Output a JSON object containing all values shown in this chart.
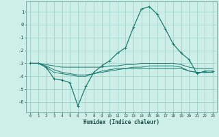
{
  "xlabel": "Humidex (Indice chaleur)",
  "bg_color": "#ceeee8",
  "grid_color": "#9fd4cc",
  "line_color": "#1a7a6e",
  "x_ticks": [
    0,
    1,
    2,
    3,
    4,
    5,
    6,
    7,
    8,
    9,
    10,
    11,
    12,
    13,
    14,
    15,
    16,
    17,
    18,
    19,
    20,
    21,
    22,
    23
  ],
  "y_ticks": [
    -6,
    -5,
    -4,
    -3,
    -2,
    -1,
    0,
    1
  ],
  "ylim": [
    -6.8,
    1.8
  ],
  "xlim": [
    -0.5,
    23.5
  ],
  "curve1_x": [
    0,
    1,
    2,
    3,
    4,
    5,
    6,
    7,
    8,
    9,
    10,
    11,
    12,
    13,
    14,
    15,
    16,
    17,
    18,
    19,
    20,
    21,
    22,
    23
  ],
  "curve1_y": [
    -3.0,
    -3.0,
    -3.3,
    -4.2,
    -4.3,
    -4.5,
    -6.3,
    -4.8,
    -3.7,
    -3.2,
    -2.8,
    -2.2,
    -1.8,
    -0.2,
    1.2,
    1.4,
    0.8,
    -0.3,
    -1.5,
    -2.2,
    -2.7,
    -3.8,
    -3.6,
    -3.6
  ],
  "curve2_x": [
    0,
    1,
    2,
    3,
    4,
    5,
    6,
    7,
    8,
    9,
    10,
    11,
    12,
    13,
    14,
    15,
    16,
    17,
    18,
    19,
    20,
    21,
    22,
    23
  ],
  "curve2_y": [
    -3.0,
    -3.0,
    -3.1,
    -3.2,
    -3.3,
    -3.3,
    -3.3,
    -3.3,
    -3.3,
    -3.3,
    -3.2,
    -3.2,
    -3.1,
    -3.1,
    -3.0,
    -3.0,
    -3.0,
    -3.0,
    -3.0,
    -3.1,
    -3.3,
    -3.4,
    -3.4,
    -3.4
  ],
  "curve3_x": [
    0,
    1,
    2,
    3,
    4,
    5,
    6,
    7,
    8,
    9,
    10,
    11,
    12,
    13,
    14,
    15,
    16,
    17,
    18,
    19,
    20,
    21,
    22,
    23
  ],
  "curve3_y": [
    -3.0,
    -3.0,
    -3.2,
    -3.5,
    -3.7,
    -3.8,
    -3.9,
    -3.9,
    -3.8,
    -3.7,
    -3.6,
    -3.5,
    -3.4,
    -3.3,
    -3.3,
    -3.2,
    -3.2,
    -3.2,
    -3.2,
    -3.3,
    -3.6,
    -3.7,
    -3.7,
    -3.7
  ],
  "curve4_x": [
    0,
    1,
    2,
    3,
    4,
    5,
    6,
    7,
    8,
    9,
    10,
    11,
    12,
    13,
    14,
    15,
    16,
    17,
    18,
    19,
    20,
    21,
    22,
    23
  ],
  "curve4_y": [
    -3.0,
    -3.0,
    -3.3,
    -3.7,
    -3.8,
    -3.9,
    -4.0,
    -4.0,
    -3.8,
    -3.6,
    -3.5,
    -3.4,
    -3.4,
    -3.4,
    -3.4,
    -3.4,
    -3.4,
    -3.4,
    -3.4,
    -3.4,
    -3.6,
    -3.7,
    -3.7,
    -3.7
  ]
}
